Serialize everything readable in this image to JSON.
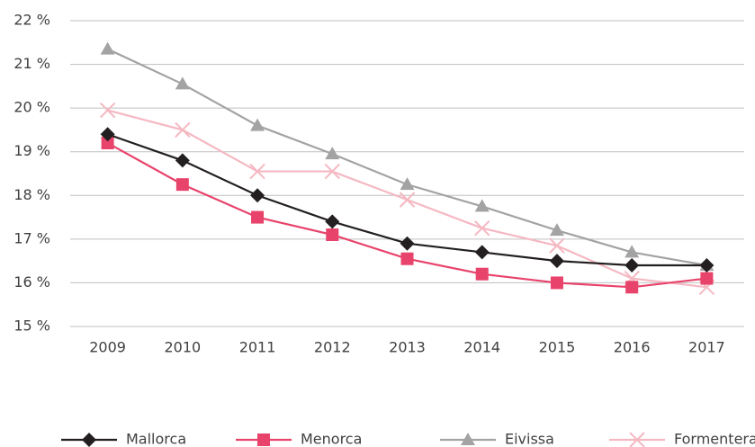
{
  "chart_data": {
    "type": "line",
    "categories": [
      "2009",
      "2010",
      "2011",
      "2012",
      "2013",
      "2014",
      "2015",
      "2016",
      "2017"
    ],
    "series": [
      {
        "name": "Mallorca",
        "color": "#231f20",
        "marker": "diamond",
        "values": [
          19.4,
          18.8,
          18.0,
          17.4,
          16.9,
          16.7,
          16.5,
          16.4,
          16.4
        ]
      },
      {
        "name": "Menorca",
        "color": "#e8436b",
        "marker": "square",
        "values": [
          19.2,
          18.25,
          17.5,
          17.1,
          16.55,
          16.2,
          16.0,
          15.9,
          16.1
        ]
      },
      {
        "name": "Eivissa",
        "color": "#a3a3a3",
        "marker": "triangle",
        "values": [
          21.35,
          20.55,
          19.6,
          18.95,
          18.25,
          17.75,
          17.2,
          16.7,
          16.4
        ]
      },
      {
        "name": "Formentera",
        "color": "#f5b8c2",
        "marker": "x",
        "values": [
          19.95,
          19.5,
          18.55,
          18.55,
          17.9,
          17.25,
          16.85,
          16.1,
          15.9
        ]
      }
    ],
    "ylim": [
      15,
      22
    ],
    "yticks": [
      {
        "value": 15,
        "label": "15 %"
      },
      {
        "value": 16,
        "label": "16 %"
      },
      {
        "value": 17,
        "label": "17 %"
      },
      {
        "value": 18,
        "label": "18 %"
      },
      {
        "value": 19,
        "label": "19 %"
      },
      {
        "value": 20,
        "label": "20 %"
      },
      {
        "value": 21,
        "label": "21 %"
      },
      {
        "value": 22,
        "label": "22 %"
      }
    ],
    "grid": true,
    "legend": "bottom"
  }
}
